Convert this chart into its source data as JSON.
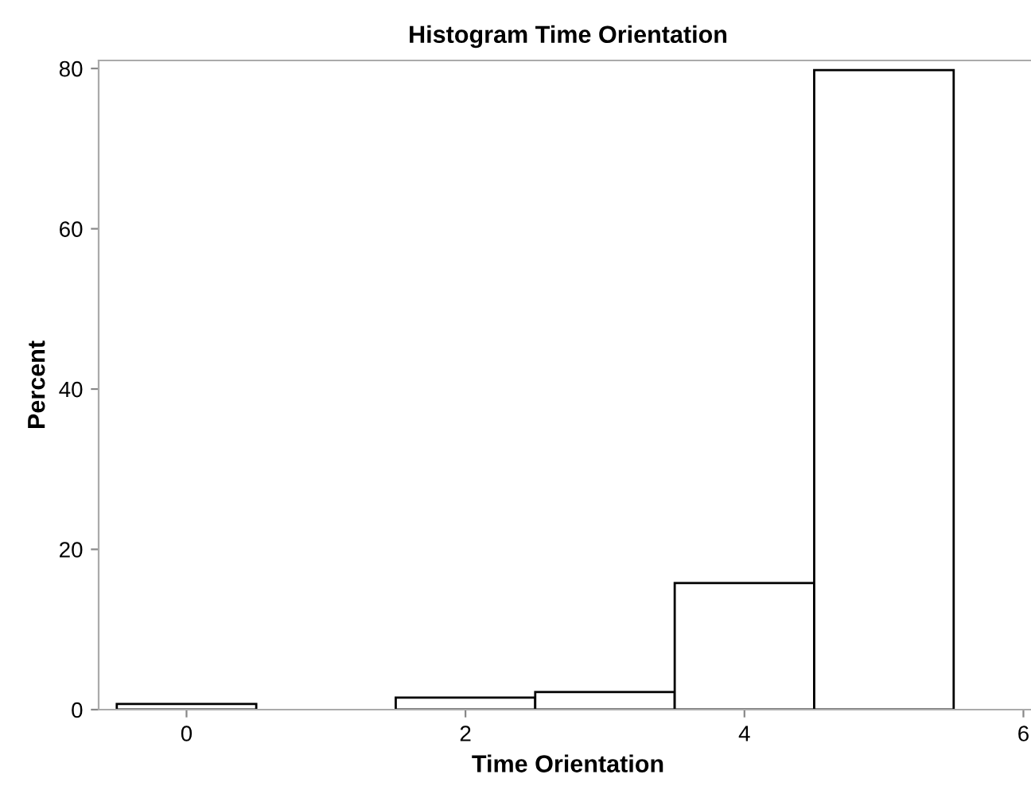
{
  "chart_data": {
    "type": "histogram",
    "title": "Histogram Time Orientation",
    "xlabel": "Time Orientation",
    "ylabel": "Percent",
    "bins": [
      -0.5,
      0.5,
      1.5,
      2.5,
      3.5,
      4.5,
      5.5
    ],
    "values": [
      0.7,
      0,
      1.5,
      2.2,
      15.8,
      79.8
    ],
    "color": "#ffffff",
    "xlim": [
      -0.63,
      6.1
    ],
    "xticks": [
      0,
      2,
      4,
      6
    ],
    "ylim": [
      0,
      81
    ],
    "yticks": [
      0,
      20,
      40,
      60,
      80
    ],
    "grid": false
  }
}
